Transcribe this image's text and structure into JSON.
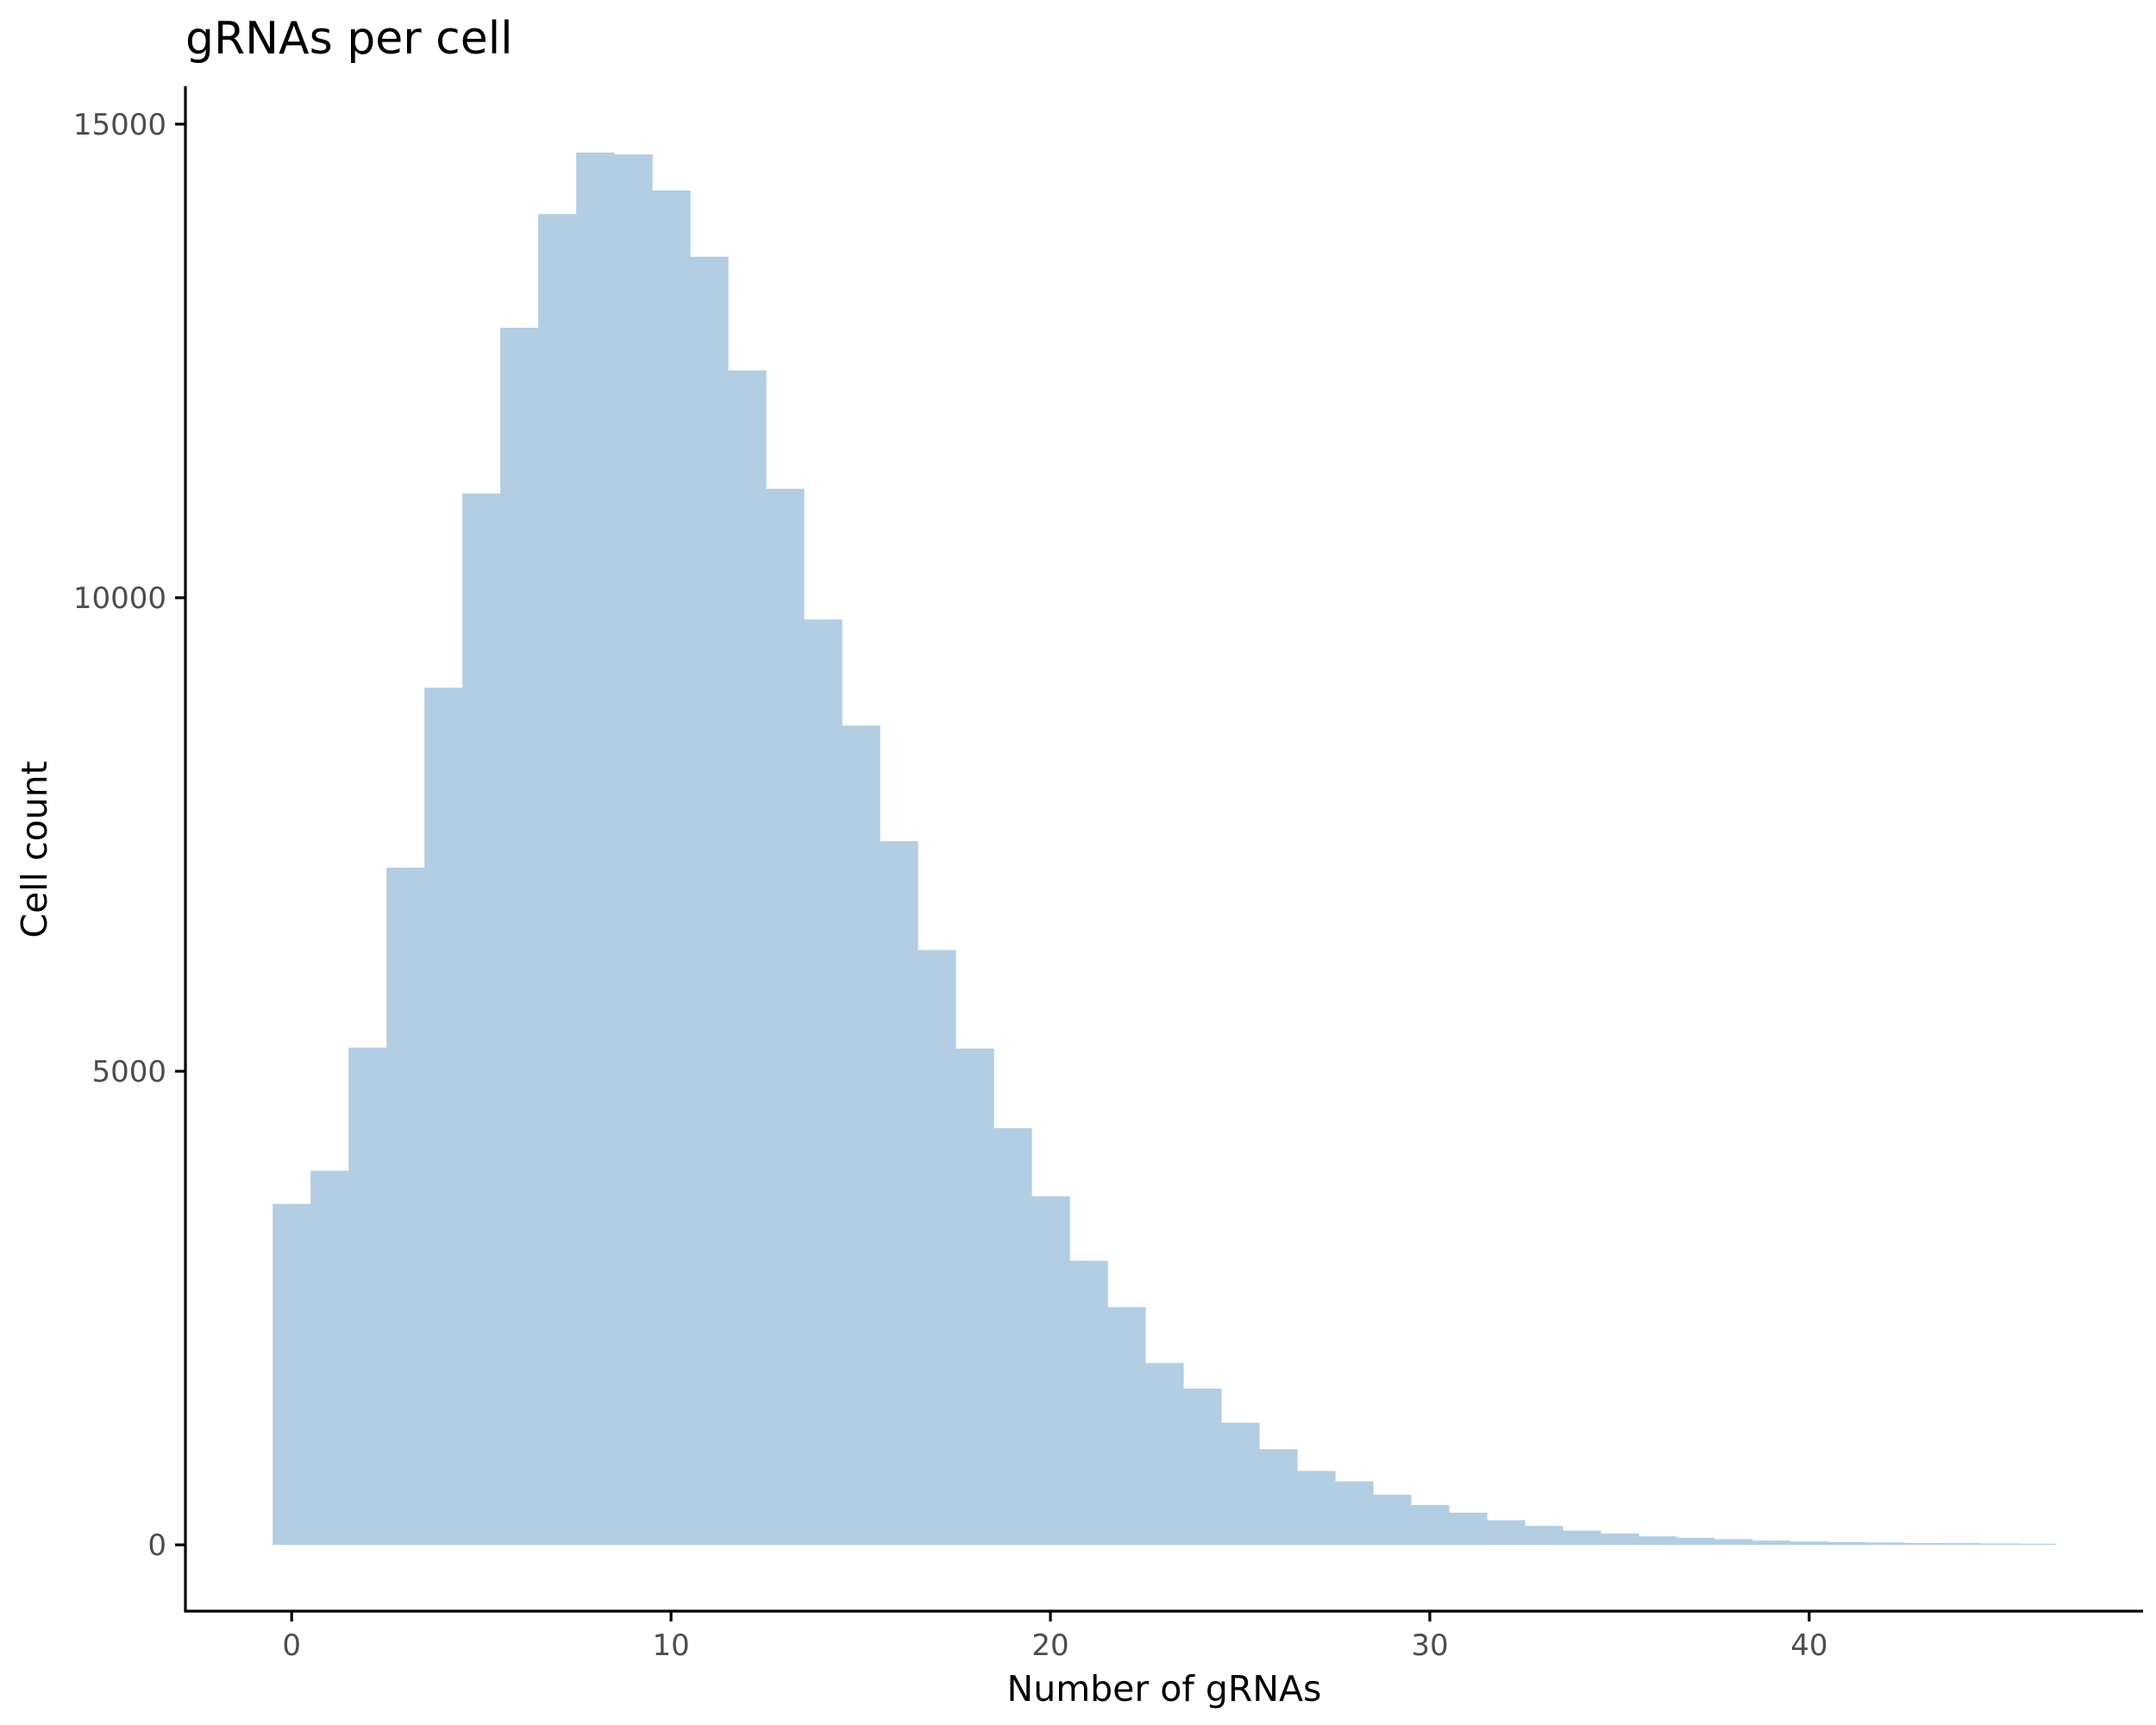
{
  "chart_data": {
    "type": "bar",
    "title": "gRNAs per cell",
    "xlabel": "Number of gRNAs",
    "ylabel": "Cell count",
    "x_ticks": [
      0,
      10,
      20,
      30,
      40
    ],
    "y_ticks": [
      0,
      5000,
      10000,
      15000
    ],
    "xlim": [
      -2.8,
      48.8
    ],
    "ylim": [
      -700,
      15400
    ],
    "bar_color": "#b3cde3",
    "grid": false,
    "legend": "none",
    "categories": [
      0,
      1,
      2,
      3,
      4,
      5,
      6,
      7,
      8,
      9,
      10,
      11,
      12,
      13,
      14,
      15,
      16,
      17,
      18,
      19,
      20,
      21,
      22,
      23,
      24,
      25,
      26,
      27,
      28,
      29,
      30,
      31,
      32,
      33,
      34,
      35,
      36,
      37,
      38,
      39,
      40,
      41,
      42,
      43,
      44,
      45,
      46
    ],
    "values": [
      3600,
      3950,
      5250,
      7150,
      9050,
      11100,
      12850,
      14050,
      14700,
      14680,
      14300,
      13600,
      12400,
      11150,
      9770,
      8650,
      7430,
      6280,
      5240,
      4400,
      3680,
      3000,
      2510,
      1920,
      1650,
      1290,
      1010,
      780,
      670,
      530,
      420,
      340,
      260,
      200,
      150,
      120,
      90,
      75,
      60,
      45,
      35,
      30,
      25,
      20,
      18,
      15,
      12
    ]
  }
}
